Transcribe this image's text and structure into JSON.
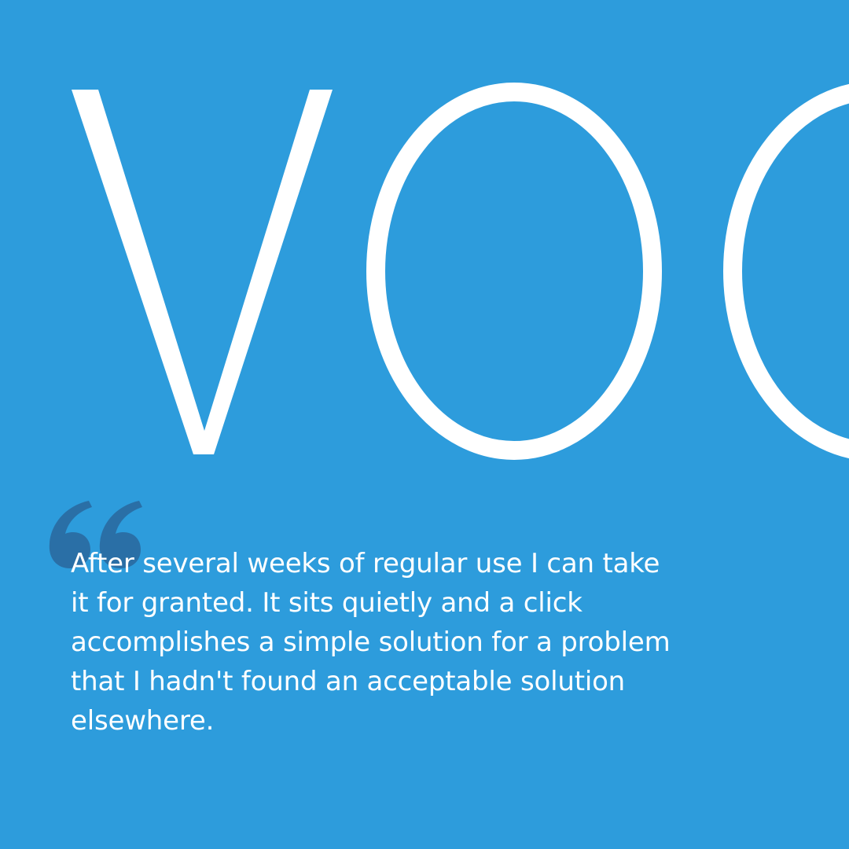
{
  "brand": {
    "wordmark_text": "VOO",
    "background_color": "#2d9cdc",
    "text_color": "#ffffff",
    "quote_mark_color": "#2a6fa6"
  },
  "quote": {
    "icon": "open-quote-icon",
    "lines": [
      "After several weeks of regular use I can take",
      "it for granted. It sits quietly and a click",
      "accomplishes a simple solution for a problem",
      "that I hadn't found an acceptable solution",
      "elsewhere."
    ]
  }
}
